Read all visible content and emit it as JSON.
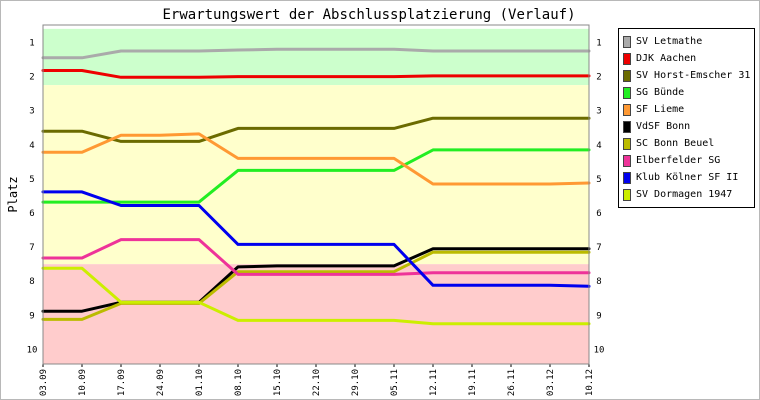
{
  "chart_data": {
    "type": "line",
    "title": "Erwartungswert der Abschlussplatzierung (Verlauf)",
    "ylabel": "Platz",
    "xlabel": "",
    "ylim": [
      1,
      10
    ],
    "y_inverted": true,
    "yticks": [
      "1",
      "2",
      "3",
      "4",
      "5",
      "6",
      "7",
      "8",
      "9",
      "10"
    ],
    "categories": [
      "03.09",
      "10.09",
      "17.09",
      "24.09",
      "01.10",
      "08.10",
      "15.10",
      "22.10",
      "29.10",
      "05.11",
      "12.11",
      "19.11",
      "26.11",
      "03.12",
      "10.12"
    ],
    "zones": [
      {
        "from": 0.6,
        "to": 2.25,
        "color": "#ccffcc"
      },
      {
        "from": 2.25,
        "to": 7.5,
        "color": "#ffffcc"
      },
      {
        "from": 7.5,
        "to": 10.5,
        "color": "#ffcccc"
      }
    ],
    "legend_position": "right",
    "series": [
      {
        "name": "SV Letmathe",
        "color": "#aaaaaa",
        "values": [
          1.45,
          1.45,
          1.25,
          1.25,
          1.25,
          1.22,
          1.2,
          1.2,
          1.2,
          1.2,
          1.25,
          1.25,
          1.25,
          1.25,
          1.25
        ]
      },
      {
        "name": "DJK Aachen",
        "color": "#ee0000",
        "values": [
          1.82,
          1.82,
          2.02,
          2.02,
          2.02,
          2.0,
          2.0,
          2.0,
          2.0,
          2.0,
          1.98,
          1.98,
          1.98,
          1.98,
          1.98
        ]
      },
      {
        "name": "SV Horst-Emscher 31",
        "color": "#6b6b00",
        "values": [
          3.6,
          3.6,
          3.9,
          3.9,
          3.9,
          3.52,
          3.52,
          3.52,
          3.52,
          3.52,
          3.22,
          3.22,
          3.22,
          3.22,
          3.22
        ]
      },
      {
        "name": "SG Bünde",
        "color": "#22ee22",
        "values": [
          5.68,
          5.68,
          5.68,
          5.68,
          5.68,
          4.75,
          4.75,
          4.75,
          4.75,
          4.75,
          4.15,
          4.15,
          4.15,
          4.15,
          4.15
        ]
      },
      {
        "name": "SF Lieme",
        "color": "#ff9933",
        "values": [
          4.22,
          4.22,
          3.72,
          3.72,
          3.68,
          4.4,
          4.4,
          4.4,
          4.4,
          4.4,
          5.15,
          5.15,
          5.15,
          5.15,
          5.12
        ]
      },
      {
        "name": "VdSF Bonn",
        "color": "#000000",
        "values": [
          8.88,
          8.88,
          8.62,
          8.62,
          8.62,
          7.58,
          7.55,
          7.55,
          7.55,
          7.55,
          7.05,
          7.05,
          7.05,
          7.05,
          7.05
        ]
      },
      {
        "name": "SC Bonn Beuel",
        "color": "#bbbb00",
        "values": [
          9.12,
          9.12,
          8.65,
          8.65,
          8.65,
          7.72,
          7.72,
          7.72,
          7.72,
          7.72,
          7.15,
          7.15,
          7.15,
          7.15,
          7.15
        ]
      },
      {
        "name": "Elberfelder SG",
        "color": "#ee3399",
        "values": [
          7.32,
          7.32,
          6.78,
          6.78,
          6.78,
          7.8,
          7.8,
          7.8,
          7.8,
          7.8,
          7.75,
          7.75,
          7.75,
          7.75,
          7.75
        ]
      },
      {
        "name": "Klub Kölner SF II",
        "color": "#0000ee",
        "values": [
          5.38,
          5.38,
          5.78,
          5.78,
          5.78,
          6.92,
          6.92,
          6.92,
          6.92,
          6.92,
          8.12,
          8.12,
          8.12,
          8.12,
          8.15
        ]
      },
      {
        "name": "SV Dormagen 1947",
        "color": "#ccee00",
        "values": [
          7.62,
          7.62,
          8.62,
          8.62,
          8.62,
          9.15,
          9.15,
          9.15,
          9.15,
          9.15,
          9.25,
          9.25,
          9.25,
          9.25,
          9.25
        ]
      }
    ]
  }
}
